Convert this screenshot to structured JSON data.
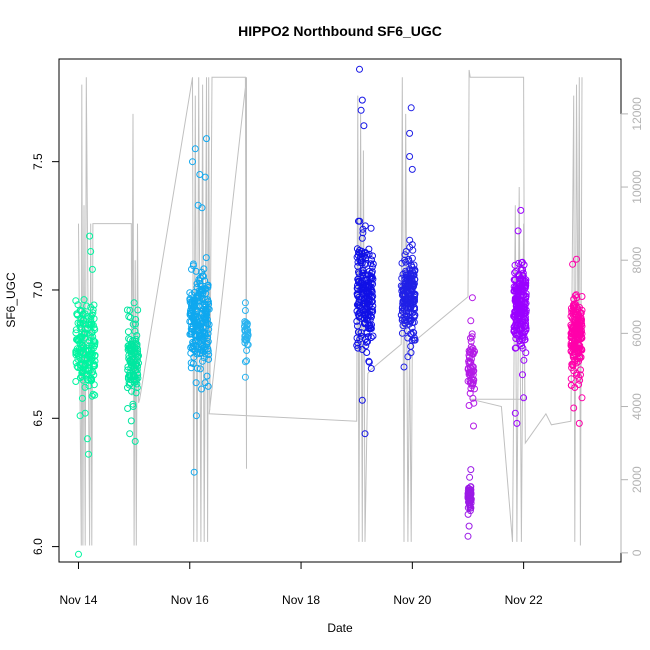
{
  "chart_data": {
    "type": "scatter",
    "title": "HIPPO2 Northbound SF6_UGC",
    "xlabel": "Date",
    "ylabel": "SF6_UGC",
    "x_ticks": [
      "Nov 14",
      "Nov 16",
      "Nov 18",
      "Nov 20",
      "Nov 22"
    ],
    "x_tick_days": [
      14,
      16,
      18,
      20,
      22
    ],
    "xlim_days": [
      13.65,
      23.75
    ],
    "y_ticks": [
      6.0,
      6.5,
      7.0,
      7.5
    ],
    "ylim": [
      5.94,
      7.9
    ],
    "y2_ticks": [
      0,
      2000,
      4000,
      6000,
      8000,
      10000,
      12000
    ],
    "y2lim": [
      -250,
      13500
    ],
    "y2_color": "#b3b3b3",
    "marker": "open-circle",
    "altitude_series": {
      "color": "#c0c0c0",
      "description_none": "",
      "points": [
        [
          14.0,
          9000
        ],
        [
          14.05,
          200
        ],
        [
          14.06,
          12800
        ],
        [
          14.08,
          200
        ],
        [
          14.1,
          9500
        ],
        [
          14.12,
          200
        ],
        [
          14.14,
          13000
        ],
        [
          14.16,
          9000
        ],
        [
          14.2,
          200
        ],
        [
          14.22,
          9000
        ],
        [
          14.24,
          200
        ],
        [
          14.26,
          9000
        ],
        [
          14.3,
          9000
        ],
        [
          14.95,
          9000
        ],
        [
          14.96,
          4300
        ],
        [
          14.98,
          12000
        ],
        [
          15.0,
          200
        ],
        [
          15.02,
          8000
        ],
        [
          15.04,
          200
        ],
        [
          15.06,
          9000
        ],
        [
          15.08,
          4100
        ],
        [
          15.1,
          4200
        ],
        [
          16.05,
          13000
        ],
        [
          16.07,
          300
        ],
        [
          16.1,
          12500
        ],
        [
          16.13,
          300
        ],
        [
          16.16,
          13000
        ],
        [
          16.2,
          300
        ],
        [
          16.23,
          12800
        ],
        [
          16.26,
          300
        ],
        [
          16.3,
          13000
        ],
        [
          16.32,
          300
        ],
        [
          16.34,
          13000
        ],
        [
          16.36,
          3900
        ],
        [
          16.4,
          13000
        ],
        [
          17.0,
          13000
        ],
        [
          17.02,
          2300
        ],
        [
          17.02,
          13000
        ],
        [
          16.35,
          3800
        ],
        [
          19.0,
          3600
        ],
        [
          19.02,
          12500
        ],
        [
          19.04,
          300
        ],
        [
          19.07,
          12000
        ],
        [
          19.1,
          300
        ],
        [
          19.12,
          11000
        ],
        [
          19.15,
          300
        ],
        [
          19.2,
          4900
        ],
        [
          19.25,
          5000
        ],
        [
          19.8,
          5700
        ],
        [
          19.82,
          13000
        ],
        [
          19.85,
          300
        ],
        [
          19.88,
          12000
        ],
        [
          19.92,
          300
        ],
        [
          19.95,
          5800
        ],
        [
          19.98,
          300
        ],
        [
          20.0,
          5700
        ],
        [
          20.05,
          5800
        ],
        [
          21.0,
          7000
        ],
        [
          21.02,
          13200
        ],
        [
          21.04,
          13000
        ],
        [
          21.06,
          13000
        ],
        [
          22.0,
          13000
        ],
        [
          22.02,
          4300
        ],
        [
          22.05,
          4200
        ],
        [
          21.05,
          4200
        ],
        [
          21.6,
          4000
        ],
        [
          21.8,
          300
        ],
        [
          21.85,
          9500
        ],
        [
          21.88,
          300
        ],
        [
          21.92,
          10000
        ],
        [
          21.96,
          300
        ],
        [
          22.0,
          9000
        ],
        [
          22.03,
          3000
        ],
        [
          22.4,
          3800
        ],
        [
          22.5,
          3500
        ],
        [
          22.85,
          3600
        ],
        [
          22.9,
          12500
        ],
        [
          22.92,
          300
        ],
        [
          22.95,
          12800
        ],
        [
          22.98,
          5000
        ],
        [
          23.0,
          13000
        ],
        [
          23.02,
          200
        ],
        [
          23.05,
          13000
        ]
      ]
    },
    "series": [
      {
        "color": "#00f5a0",
        "x_range": [
          13.95,
          14.3
        ],
        "y_center": 6.78,
        "y_spread": 0.14,
        "n": 170,
        "extra_points": [
          [
            14.0,
            5.97
          ],
          [
            14.18,
            6.36
          ],
          [
            14.16,
            6.42
          ],
          [
            14.03,
            6.51
          ],
          [
            14.12,
            6.52
          ],
          [
            14.2,
            7.21
          ],
          [
            14.22,
            7.15
          ],
          [
            14.25,
            7.08
          ]
        ]
      },
      {
        "color": "#00e7a0",
        "x_range": [
          14.88,
          15.08
        ],
        "y_center": 6.73,
        "y_spread": 0.12,
        "n": 110,
        "extra_points": [
          [
            14.92,
            6.44
          ],
          [
            15.02,
            6.41
          ],
          [
            14.95,
            6.49
          ],
          [
            15.0,
            6.95
          ]
        ]
      },
      {
        "color": "#0fa8ef",
        "x_range": [
          16.0,
          16.35
        ],
        "y_center": 6.87,
        "y_spread": 0.16,
        "n": 230,
        "extra_points": [
          [
            16.08,
            6.29
          ],
          [
            16.12,
            6.51
          ],
          [
            16.3,
            7.59
          ],
          [
            16.1,
            7.55
          ],
          [
            16.05,
            7.5
          ],
          [
            16.18,
            7.45
          ],
          [
            16.28,
            7.44
          ],
          [
            16.22,
            7.32
          ],
          [
            16.15,
            7.33
          ]
        ]
      },
      {
        "color": "#29b3f0",
        "x_range": [
          16.98,
          17.05
        ],
        "y_center": 6.82,
        "y_spread": 0.06,
        "n": 30,
        "extra_points": [
          [
            17.0,
            6.95
          ],
          [
            17.0,
            6.92
          ],
          [
            17.0,
            6.72
          ],
          [
            17.0,
            6.66
          ]
        ]
      },
      {
        "color": "#1111e6",
        "x_range": [
          19.0,
          19.3
        ],
        "y_center": 6.98,
        "y_spread": 0.18,
        "n": 210,
        "extra_points": [
          [
            19.05,
            7.86
          ],
          [
            19.1,
            7.74
          ],
          [
            19.08,
            7.7
          ],
          [
            19.13,
            7.64
          ],
          [
            19.15,
            6.44
          ],
          [
            19.1,
            6.57
          ],
          [
            19.2,
            6.95
          ]
        ]
      },
      {
        "color": "#2020e6",
        "x_range": [
          19.8,
          20.05
        ],
        "y_center": 6.98,
        "y_spread": 0.14,
        "n": 190,
        "extra_points": [
          [
            19.98,
            7.71
          ],
          [
            19.95,
            7.61
          ],
          [
            19.95,
            7.52
          ],
          [
            20.0,
            7.47
          ],
          [
            19.85,
            6.7
          ],
          [
            19.92,
            6.74
          ],
          [
            19.97,
            6.78
          ]
        ]
      },
      {
        "color": "#b31ae6",
        "x_range": [
          21.0,
          21.12
        ],
        "y_center": 6.7,
        "y_spread": 0.09,
        "n": 60,
        "extra_points": [
          [
            21.08,
            6.97
          ],
          [
            21.05,
            6.88
          ],
          [
            21.02,
            6.55
          ],
          [
            21.1,
            6.47
          ]
        ]
      },
      {
        "color": "#9b1ae6",
        "x_range": [
          21.0,
          21.06
        ],
        "y_center": 6.18,
        "y_spread": 0.05,
        "n": 50,
        "extra_points": [
          [
            21.05,
            6.3
          ],
          [
            21.03,
            6.27
          ],
          [
            21.0,
            6.04
          ],
          [
            21.02,
            6.08
          ]
        ]
      },
      {
        "color": "#9a00ff",
        "x_range": [
          21.82,
          22.05
        ],
        "y_center": 6.93,
        "y_spread": 0.13,
        "n": 210,
        "extra_points": [
          [
            21.95,
            7.31
          ],
          [
            21.9,
            7.23
          ],
          [
            21.88,
            6.48
          ],
          [
            21.85,
            6.52
          ],
          [
            22.0,
            6.58
          ],
          [
            21.98,
            6.67
          ]
        ]
      },
      {
        "color": "#ff00aa",
        "x_range": [
          22.85,
          23.05
        ],
        "y_center": 6.82,
        "y_spread": 0.12,
        "n": 190,
        "extra_points": [
          [
            22.95,
            7.12
          ],
          [
            22.88,
            7.1
          ],
          [
            23.0,
            6.48
          ],
          [
            22.9,
            6.54
          ],
          [
            23.05,
            6.58
          ],
          [
            22.92,
            6.62
          ]
        ]
      }
    ]
  }
}
